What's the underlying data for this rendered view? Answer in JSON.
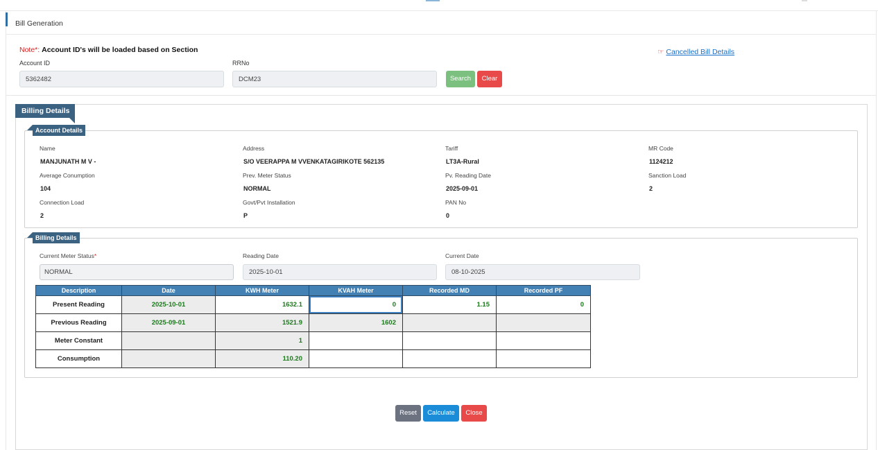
{
  "page_title": "Bill Generation",
  "note": {
    "prefix": "Note*:",
    "text": "Account ID's will be loaded based on Section"
  },
  "search": {
    "account_id_label": "Account ID",
    "account_id_value": "5362482",
    "rrno_label": "RRNo",
    "rrno_value": "DCM23",
    "search_label": "Search",
    "clear_label": "Clear"
  },
  "cancelled_link": "Cancelled Bill Details",
  "billing_panel_title": "Billing Details",
  "account_details": {
    "title": "Account Details",
    "fields": [
      {
        "label": "Name",
        "value": "MANJUNATH M V -"
      },
      {
        "label": "Address",
        "value": "S/O VEERAPPA M VVENKATAGIRIKOTE 562135"
      },
      {
        "label": "Tariff",
        "value": "LT3A-Rural"
      },
      {
        "label": "MR Code",
        "value": "1124212"
      },
      {
        "label": "Average Conumption",
        "value": "104"
      },
      {
        "label": "Prev. Meter Status",
        "value": "NORMAL"
      },
      {
        "label": "Pv. Reading Date",
        "value": "2025-09-01"
      },
      {
        "label": "Sanction Load",
        "value": "2"
      },
      {
        "label": "Connection Load",
        "value": "2"
      },
      {
        "label": "Govt/Pvt Installation",
        "value": "P"
      },
      {
        "label": "PAN No",
        "value": "0"
      }
    ]
  },
  "billing_details": {
    "title": "Billing Details",
    "meter_status_label": "Current Meter Status",
    "meter_status_required": "*",
    "meter_status_value": "NORMAL",
    "reading_date_label": "Reading Date",
    "reading_date_value": "2025-10-01",
    "current_date_label": "Current Date",
    "current_date_value": "08-10-2025"
  },
  "table": {
    "headers": [
      "Description",
      "Date",
      "KWH Meter",
      "KVAH Meter",
      "Recorded MD",
      "Recorded PF"
    ],
    "rows": [
      [
        "Present Reading",
        "2025-10-01",
        "1632.1",
        "0",
        "1.15",
        "0"
      ],
      [
        "Previous Reading",
        "2025-09-01",
        "1521.9",
        "1602",
        "",
        ""
      ],
      [
        "Meter Constant",
        "",
        "1",
        "",
        "",
        ""
      ],
      [
        "Consumption",
        "",
        "110.20",
        "",
        "",
        ""
      ]
    ]
  },
  "actions": {
    "reset": "Reset",
    "calculate": "Calculate",
    "close": "Close"
  }
}
